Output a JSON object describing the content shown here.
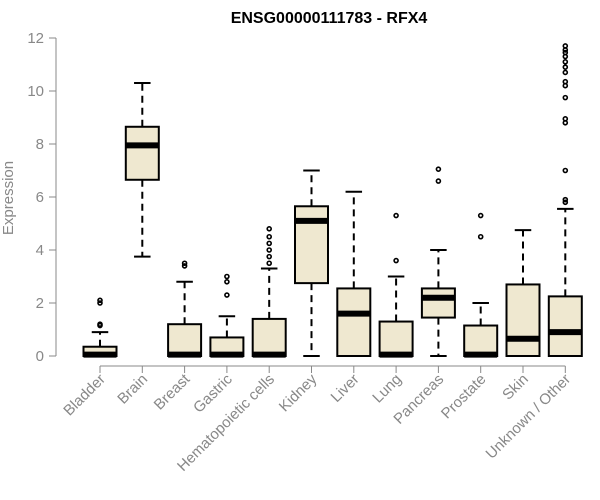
{
  "chart_data": {
    "type": "boxplot",
    "title": "ENSG00000111783 - RFX4",
    "ylabel": "Expression",
    "xlabel": "",
    "ylim": [
      0,
      12
    ],
    "yticks": [
      0,
      2,
      4,
      6,
      8,
      10,
      12
    ],
    "grid": false,
    "box_fill": "#EFE8D0",
    "categories": [
      "Bladder",
      "Brain",
      "Breast",
      "Gastric",
      "Hematopoietic cells",
      "Kidney",
      "Liver",
      "Lung",
      "Pancreas",
      "Prostate",
      "Skin",
      "Unknown / Other"
    ],
    "boxes": [
      {
        "category": "Bladder",
        "whisker_low": 0,
        "q1": 0,
        "median": 0.05,
        "q3": 0.35,
        "whisker_high": 0.9,
        "outliers": [
          1.15,
          1.2,
          2.0,
          2.1
        ]
      },
      {
        "category": "Brain",
        "whisker_low": 3.75,
        "q1": 6.65,
        "median": 7.95,
        "q3": 8.65,
        "whisker_high": 10.3,
        "outliers": []
      },
      {
        "category": "Breast",
        "whisker_low": 0,
        "q1": 0,
        "median": 0.05,
        "q3": 1.2,
        "whisker_high": 2.8,
        "outliers": [
          3.4,
          3.5
        ]
      },
      {
        "category": "Gastric",
        "whisker_low": 0,
        "q1": 0,
        "median": 0.05,
        "q3": 0.7,
        "whisker_high": 1.5,
        "outliers": [
          2.3,
          2.8,
          3.0
        ]
      },
      {
        "category": "Hematopoietic cells",
        "whisker_low": 0,
        "q1": 0,
        "median": 0.05,
        "q3": 1.4,
        "whisker_high": 3.3,
        "outliers": [
          3.5,
          3.75,
          4.0,
          4.25,
          4.5,
          4.8
        ]
      },
      {
        "category": "Kidney",
        "whisker_low": 0,
        "q1": 2.75,
        "median": 5.1,
        "q3": 5.65,
        "whisker_high": 7.0,
        "outliers": []
      },
      {
        "category": "Liver",
        "whisker_low": 0,
        "q1": 0,
        "median": 1.6,
        "q3": 2.55,
        "whisker_high": 6.2,
        "outliers": []
      },
      {
        "category": "Lung",
        "whisker_low": 0,
        "q1": 0,
        "median": 0.05,
        "q3": 1.3,
        "whisker_high": 3.0,
        "outliers": [
          3.6,
          5.3
        ]
      },
      {
        "category": "Pancreas",
        "whisker_low": 0,
        "q1": 1.45,
        "median": 2.2,
        "q3": 2.55,
        "whisker_high": 4.0,
        "outliers": [
          6.6,
          7.05
        ]
      },
      {
        "category": "Prostate",
        "whisker_low": 0,
        "q1": 0,
        "median": 0.05,
        "q3": 1.15,
        "whisker_high": 2.0,
        "outliers": [
          4.5,
          5.3
        ]
      },
      {
        "category": "Skin",
        "whisker_low": 0,
        "q1": 0,
        "median": 0.65,
        "q3": 2.7,
        "whisker_high": 4.75,
        "outliers": []
      },
      {
        "category": "Unknown / Other",
        "whisker_low": 0,
        "q1": 0,
        "median": 0.9,
        "q3": 2.25,
        "whisker_high": 5.55,
        "outliers": [
          5.8,
          5.9,
          7.0,
          8.8,
          8.95,
          9.75,
          10.2,
          10.35,
          10.7,
          10.9,
          11.1,
          11.3,
          11.45,
          11.55,
          11.7
        ]
      }
    ]
  }
}
